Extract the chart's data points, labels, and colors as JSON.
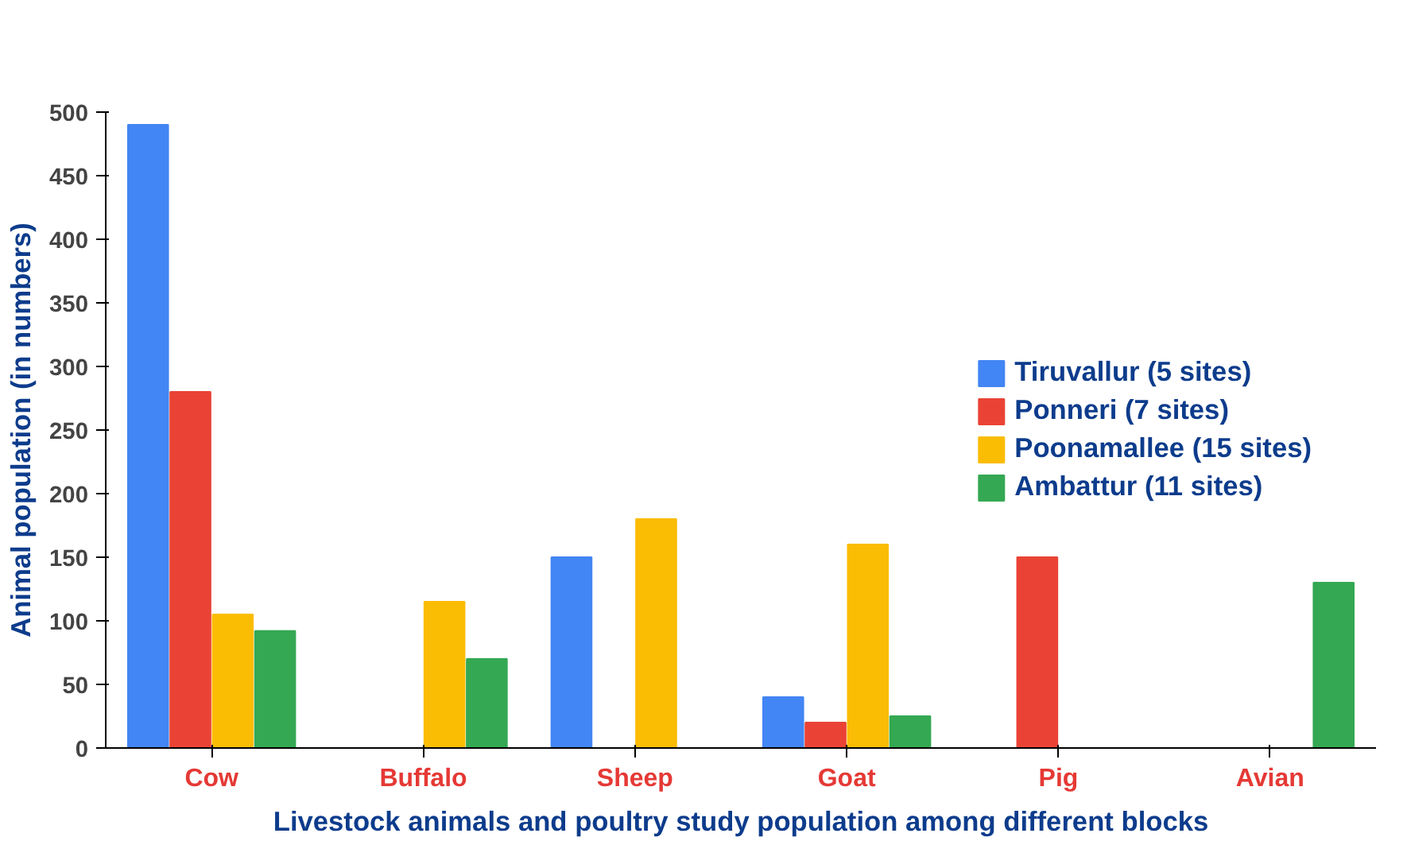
{
  "chart_data": {
    "type": "bar",
    "xlabel": "Livestock animals and poultry study population among different blocks",
    "ylabel": "Animal population (in numbers)",
    "categories": [
      "Cow",
      "Buffalo",
      "Sheep",
      "Goat",
      "Pig",
      "Avian"
    ],
    "series": [
      {
        "name": "Tiruvallur (5 sites)",
        "color": "#4285f4",
        "values": [
          490,
          0,
          150,
          40,
          0,
          0
        ]
      },
      {
        "name": "Ponneri (7 sites)",
        "color": "#ea4335",
        "values": [
          280,
          0,
          0,
          20,
          150,
          0
        ]
      },
      {
        "name": "Poonamallee (15 sites)",
        "color": "#fbbc04",
        "values": [
          105,
          115,
          180,
          160,
          0,
          0
        ]
      },
      {
        "name": "Ambattur (11 sites)",
        "color": "#34a853",
        "values": [
          92,
          70,
          0,
          25,
          0,
          130
        ]
      }
    ],
    "ylim": [
      0,
      500
    ],
    "yticks": [
      0,
      50,
      100,
      150,
      200,
      250,
      300,
      350,
      400,
      450,
      500
    ],
    "grid": false,
    "legend": "right"
  }
}
